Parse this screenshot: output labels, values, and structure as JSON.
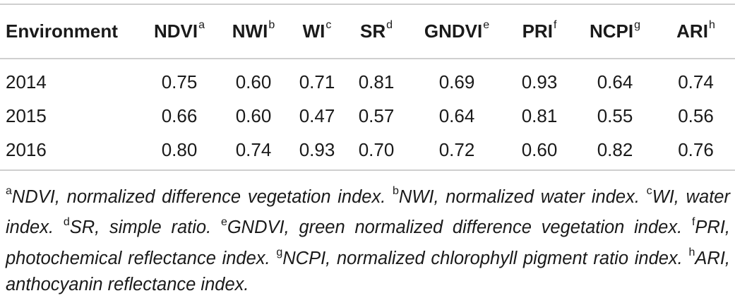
{
  "table": {
    "headers": [
      {
        "label": "Environment",
        "sup": ""
      },
      {
        "label": "NDVI",
        "sup": "a"
      },
      {
        "label": "NWI",
        "sup": "b"
      },
      {
        "label": "WI",
        "sup": "c"
      },
      {
        "label": "SR",
        "sup": "d"
      },
      {
        "label": "GNDVI",
        "sup": "e"
      },
      {
        "label": "PRI",
        "sup": "f"
      },
      {
        "label": "NCPI",
        "sup": "g"
      },
      {
        "label": "ARI",
        "sup": "h"
      }
    ],
    "rows": [
      [
        "2014",
        "0.75",
        "0.60",
        "0.71",
        "0.81",
        "0.69",
        "0.93",
        "0.64",
        "0.74"
      ],
      [
        "2015",
        "0.66",
        "0.60",
        "0.47",
        "0.57",
        "0.64",
        "0.81",
        "0.55",
        "0.56"
      ],
      [
        "2016",
        "0.80",
        "0.74",
        "0.93",
        "0.70",
        "0.72",
        "0.60",
        "0.82",
        "0.76"
      ]
    ]
  },
  "footnotes": [
    {
      "sup": "a",
      "text": "NDVI, normalized difference vegetation index."
    },
    {
      "sup": "b",
      "text": "NWI, normalized water index."
    },
    {
      "sup": "c",
      "text": "WI, water index."
    },
    {
      "sup": "d",
      "text": "SR, simple ratio."
    },
    {
      "sup": "e",
      "text": "GNDVI, green normalized difference vegetation index."
    },
    {
      "sup": "f",
      "text": "PRI, photochemical reflectance index."
    },
    {
      "sup": "g",
      "text": "NCPI, normalized chlorophyll pigment ratio index."
    },
    {
      "sup": "h",
      "text": "ARI, anthocyanin reflectance index."
    }
  ]
}
